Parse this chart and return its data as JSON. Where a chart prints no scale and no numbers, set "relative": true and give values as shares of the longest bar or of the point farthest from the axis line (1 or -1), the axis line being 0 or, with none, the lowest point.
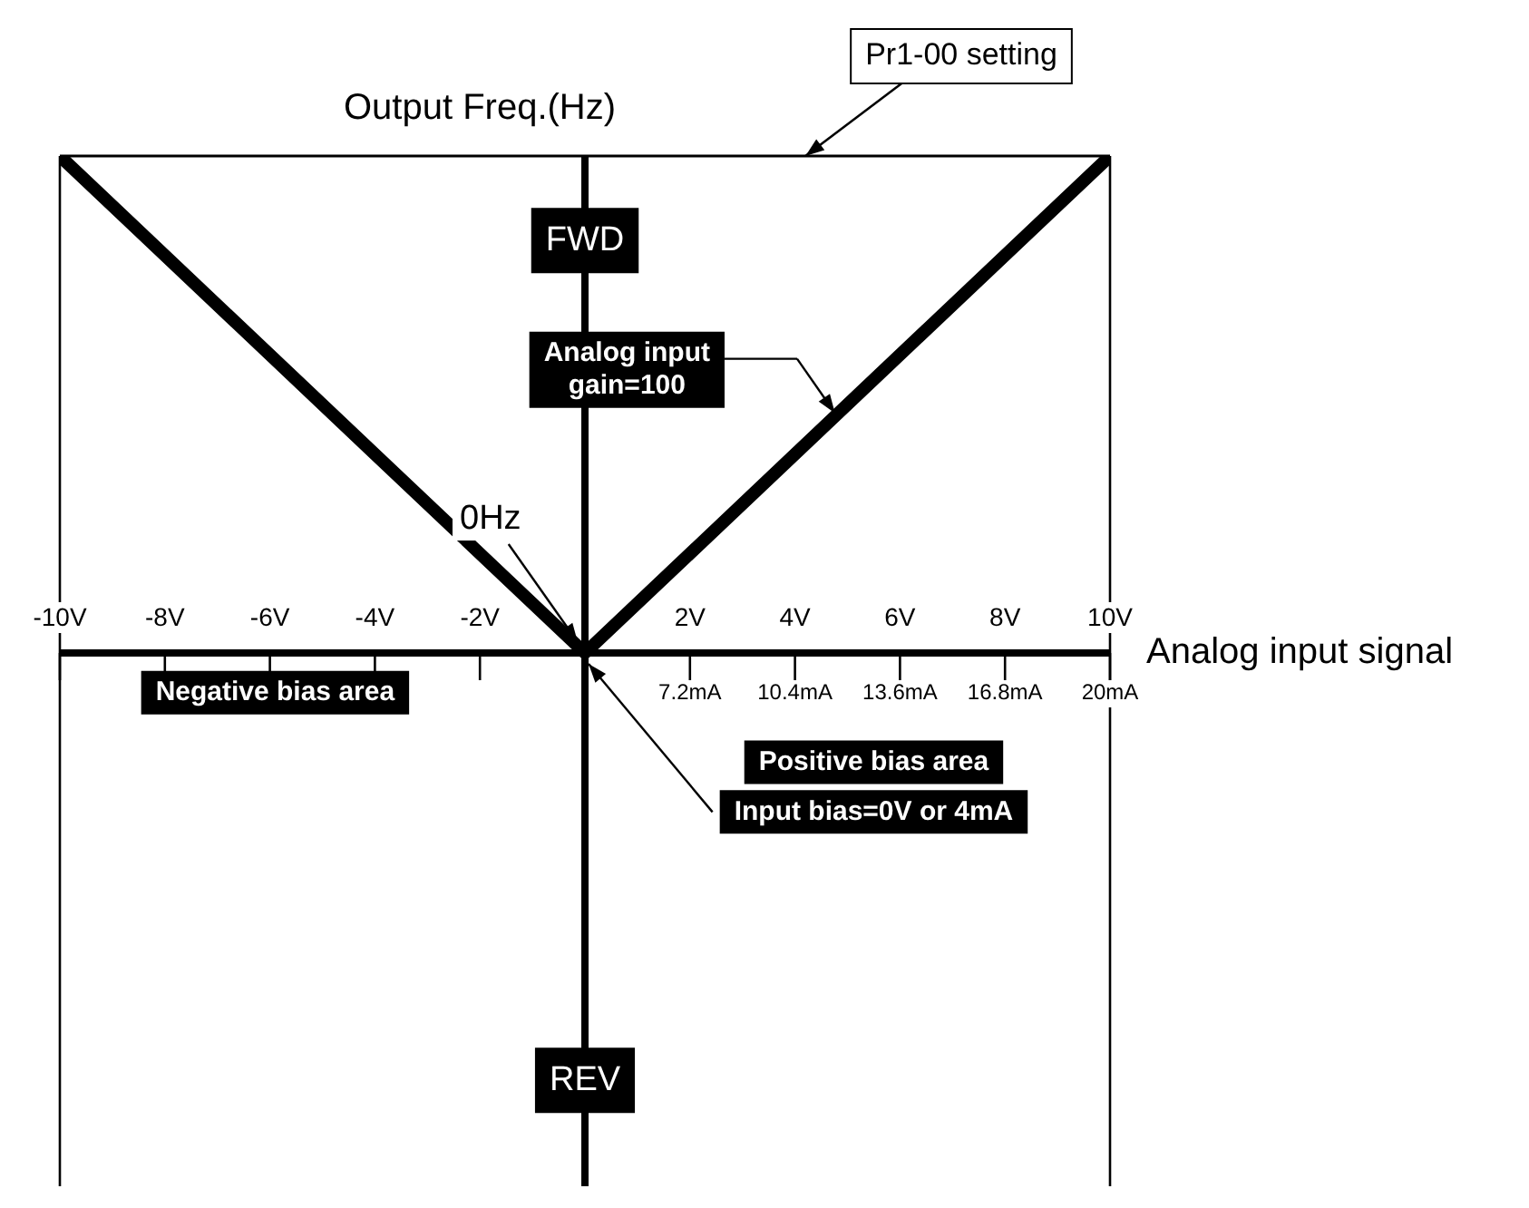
{
  "chart_data": {
    "type": "line",
    "relative": true,
    "xlabel": "Analog input signal",
    "ylabel": "Output Freq.(Hz)",
    "x": [
      -10,
      0,
      10
    ],
    "series": [
      {
        "color": "#000000",
        "values": [
          1,
          0,
          1
        ]
      }
    ],
    "xlim": [
      -10,
      10
    ],
    "xticks": [
      {
        "value": -10,
        "label": "-10V"
      },
      {
        "value": -8,
        "label": "-8V"
      },
      {
        "value": -6,
        "label": "-6V"
      },
      {
        "value": -4,
        "label": "-4V"
      },
      {
        "value": -2,
        "label": "-2V"
      },
      {
        "value": 2,
        "label": "2V"
      },
      {
        "value": 4,
        "label": "4V"
      },
      {
        "value": 6,
        "label": "6V"
      },
      {
        "value": 8,
        "label": "8V"
      },
      {
        "value": 10,
        "label": "10V"
      }
    ],
    "x2lim": [
      -12,
      20
    ],
    "x2ticks": [
      {
        "value": 7.2,
        "label": "7.2mA"
      },
      {
        "value": 10.4,
        "label": "10.4mA"
      },
      {
        "value": 13.6,
        "label": "13.6mA"
      },
      {
        "value": 16.8,
        "label": "16.8mA"
      },
      {
        "value": 20,
        "label": "20mA"
      }
    ],
    "ref_lines": [
      {
        "axis": "y",
        "value": 1,
        "label": "Pr1-00 setting"
      }
    ],
    "annotations": [
      "FWD",
      "Analog input gain=100",
      "0Hz",
      "Negative bias area",
      "Positive bias area",
      "Input bias=0V or 4mA",
      "REV"
    ],
    "grid": false,
    "legend": false,
    "marker": "none",
    "line_style": "solid"
  }
}
